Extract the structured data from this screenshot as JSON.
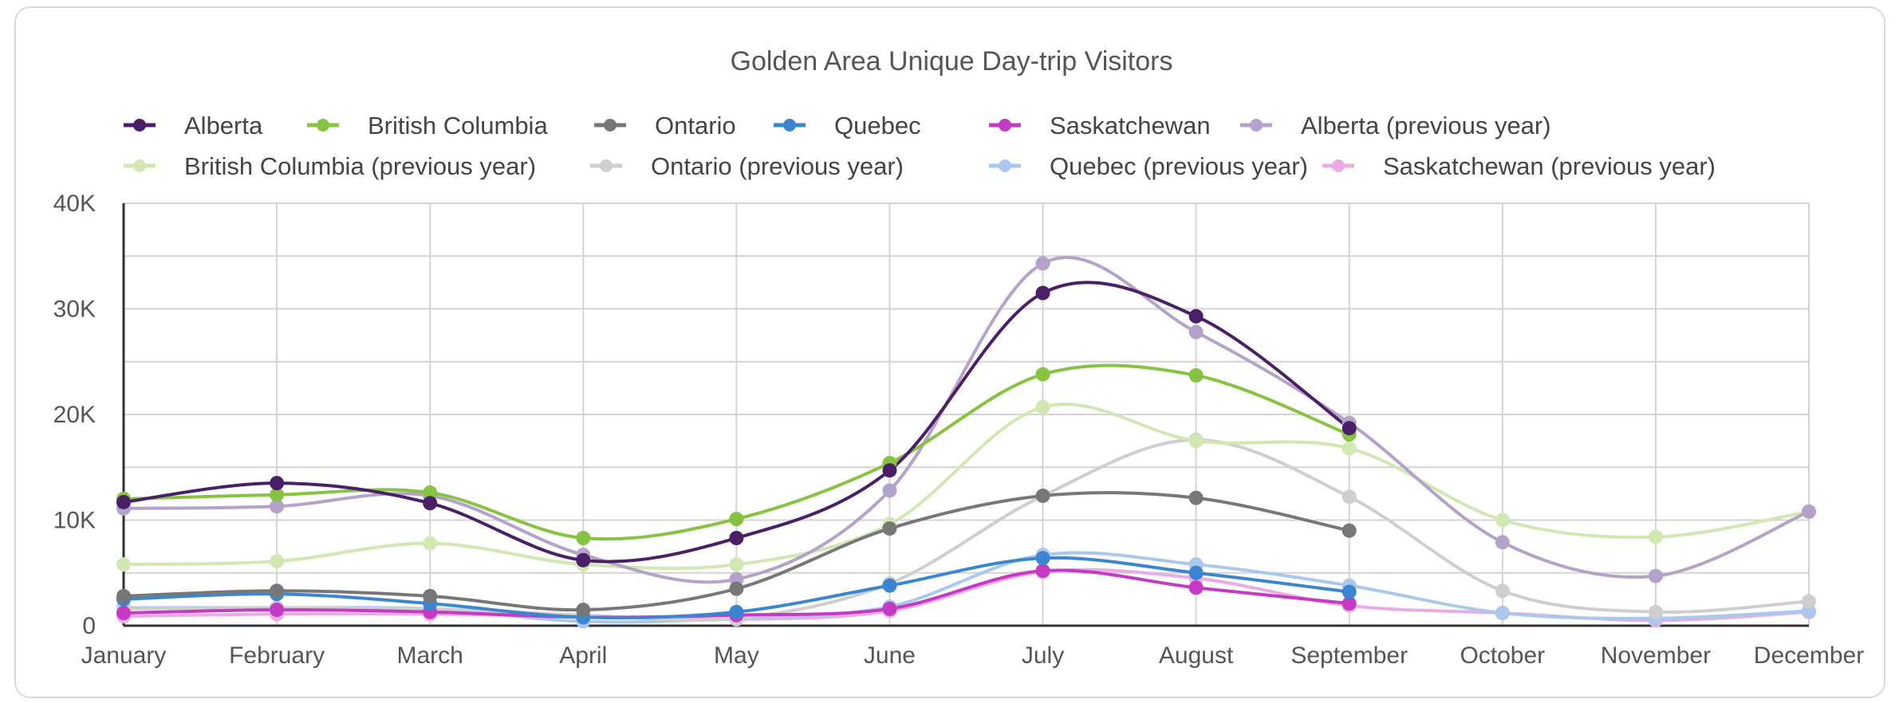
{
  "chart_data": {
    "type": "line",
    "title": "Golden Area Unique Day-trip Visitors",
    "xlabel": "",
    "ylabel": "",
    "categories": [
      "January",
      "February",
      "March",
      "April",
      "May",
      "June",
      "July",
      "August",
      "September",
      "October",
      "November",
      "December"
    ],
    "y_ticks": [
      "0",
      "10K",
      "20K",
      "30K",
      "40K"
    ],
    "ylim": [
      0,
      40000
    ],
    "grid": true,
    "legend_position": "top",
    "series": [
      {
        "name": "Alberta",
        "color": "#4a1f66",
        "values": [
          11700,
          13500,
          11600,
          6200,
          8300,
          14700,
          31500,
          29300,
          18700,
          null,
          null,
          null
        ]
      },
      {
        "name": "British Columbia",
        "color": "#85c341",
        "values": [
          12000,
          12400,
          12600,
          8300,
          10100,
          15400,
          23800,
          23700,
          18100,
          null,
          null,
          null
        ]
      },
      {
        "name": "Ontario",
        "color": "#777777",
        "values": [
          2800,
          3300,
          2800,
          1500,
          3500,
          9200,
          12300,
          12100,
          9000,
          null,
          null,
          null
        ]
      },
      {
        "name": "Quebec",
        "color": "#3a86d0",
        "values": [
          2500,
          3000,
          2100,
          800,
          1300,
          3800,
          6400,
          5000,
          3200,
          null,
          null,
          null
        ]
      },
      {
        "name": "Saskatchewan",
        "color": "#c43ac2",
        "values": [
          1200,
          1500,
          1300,
          800,
          1000,
          1600,
          5200,
          3600,
          2100,
          null,
          null,
          null
        ]
      },
      {
        "name": "Alberta (previous year)",
        "color": "#b4a2cb",
        "values": [
          11100,
          11300,
          12300,
          6700,
          4400,
          12800,
          34300,
          27800,
          19200,
          7900,
          4700,
          10800
        ]
      },
      {
        "name": "British Columbia (previous year)",
        "color": "#d2e8b2",
        "values": [
          5800,
          6100,
          7800,
          5800,
          5800,
          9600,
          20700,
          17500,
          16800,
          10000,
          8400,
          10800
        ]
      },
      {
        "name": "Ontario (previous year)",
        "color": "#cecece",
        "values": [
          1600,
          1700,
          1600,
          1000,
          700,
          4000,
          12300,
          17600,
          12200,
          3300,
          1300,
          2300
        ]
      },
      {
        "name": "Quebec (previous year)",
        "color": "#a9c8ec",
        "values": [
          1700,
          1700,
          1600,
          400,
          700,
          1800,
          6700,
          5800,
          3800,
          1200,
          700,
          1400
        ]
      },
      {
        "name": "Saskatchewan (previous year)",
        "color": "#eaaae6",
        "values": [
          900,
          1100,
          1100,
          900,
          600,
          1400,
          5100,
          4500,
          1900,
          1200,
          500,
          1300
        ]
      }
    ]
  }
}
